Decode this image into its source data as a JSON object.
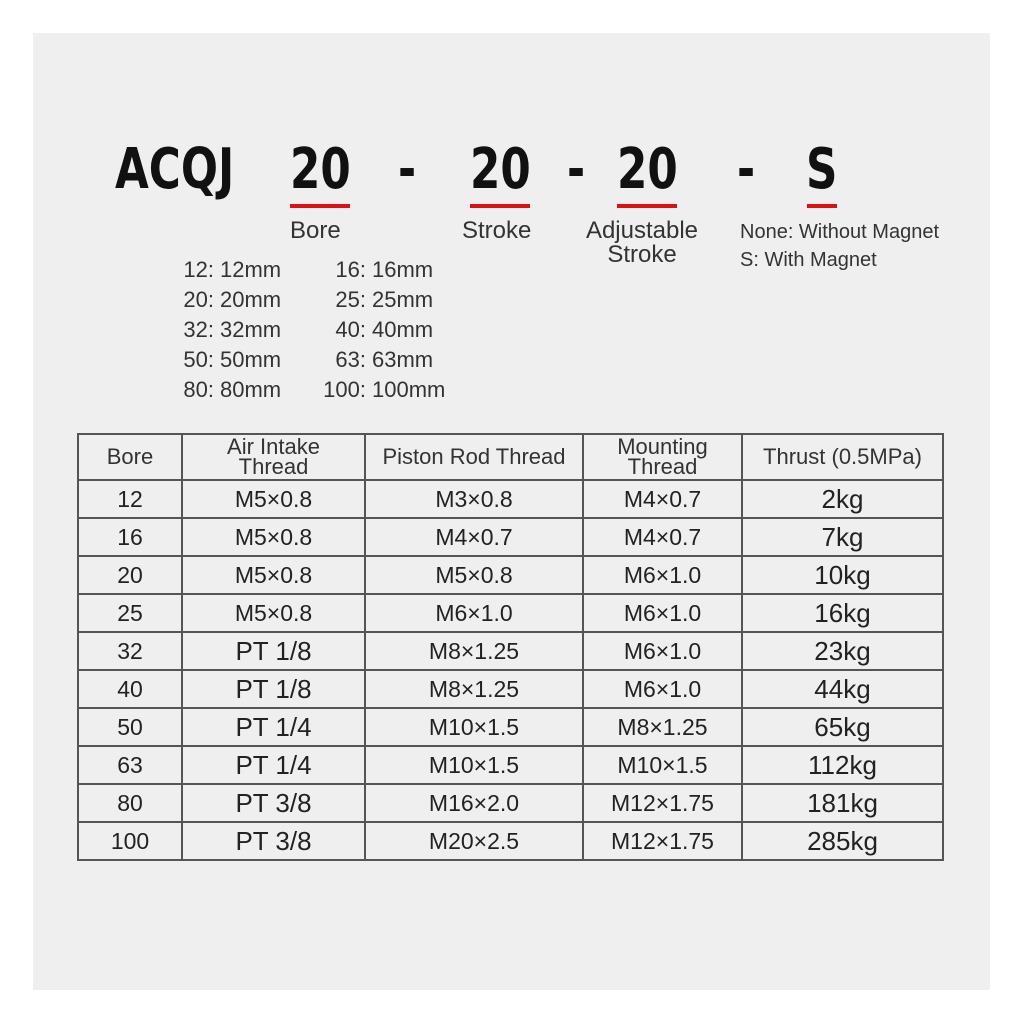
{
  "model": {
    "prefix": "ACQJ",
    "bore": "20",
    "stroke": "20",
    "adjustable": "20",
    "magnet": "S",
    "sep": "-"
  },
  "labels": {
    "bore": "Bore",
    "stroke": "Stroke",
    "adjustable": "Adjustable Stroke",
    "magnet_none": "None: Without Magnet",
    "magnet_s": "S: With Magnet"
  },
  "accent": "#dd1111",
  "bore_sizes": [
    [
      "12:",
      "12mm",
      "16:",
      "16mm"
    ],
    [
      "20:",
      "20mm",
      "25:",
      "25mm"
    ],
    [
      "32:",
      "32mm",
      "40:",
      "40mm"
    ],
    [
      "50:",
      "50mm",
      "63:",
      "63mm"
    ],
    [
      "80:",
      "80mm",
      "100:",
      "100mm"
    ]
  ],
  "table": {
    "headers": [
      "Bore",
      "Air Intake Thread",
      "Piston Rod Thread",
      "Mounting Thread",
      "Thrust (0.5MPa)"
    ],
    "rows": [
      [
        "12",
        "M5×0.8",
        "M3×0.8",
        "M4×0.7",
        "2kg"
      ],
      [
        "16",
        "M5×0.8",
        "M4×0.7",
        "M4×0.7",
        "7kg"
      ],
      [
        "20",
        "M5×0.8",
        "M5×0.8",
        "M6×1.0",
        "10kg"
      ],
      [
        "25",
        "M5×0.8",
        "M6×1.0",
        "M6×1.0",
        "16kg"
      ],
      [
        "32",
        "PT 1/8",
        "M8×1.25",
        "M6×1.0",
        "23kg"
      ],
      [
        "40",
        "PT 1/8",
        "M8×1.25",
        "M6×1.0",
        "44kg"
      ],
      [
        "50",
        "PT 1/4",
        "M10×1.5",
        "M8×1.25",
        "65kg"
      ],
      [
        "63",
        "PT 1/4",
        "M10×1.5",
        "M10×1.5",
        "112kg"
      ],
      [
        "80",
        "PT 3/8",
        "M16×2.0",
        "M12×1.75",
        "181kg"
      ],
      [
        "100",
        "PT 3/8",
        "M20×2.5",
        "M12×1.75",
        "285kg"
      ]
    ]
  }
}
